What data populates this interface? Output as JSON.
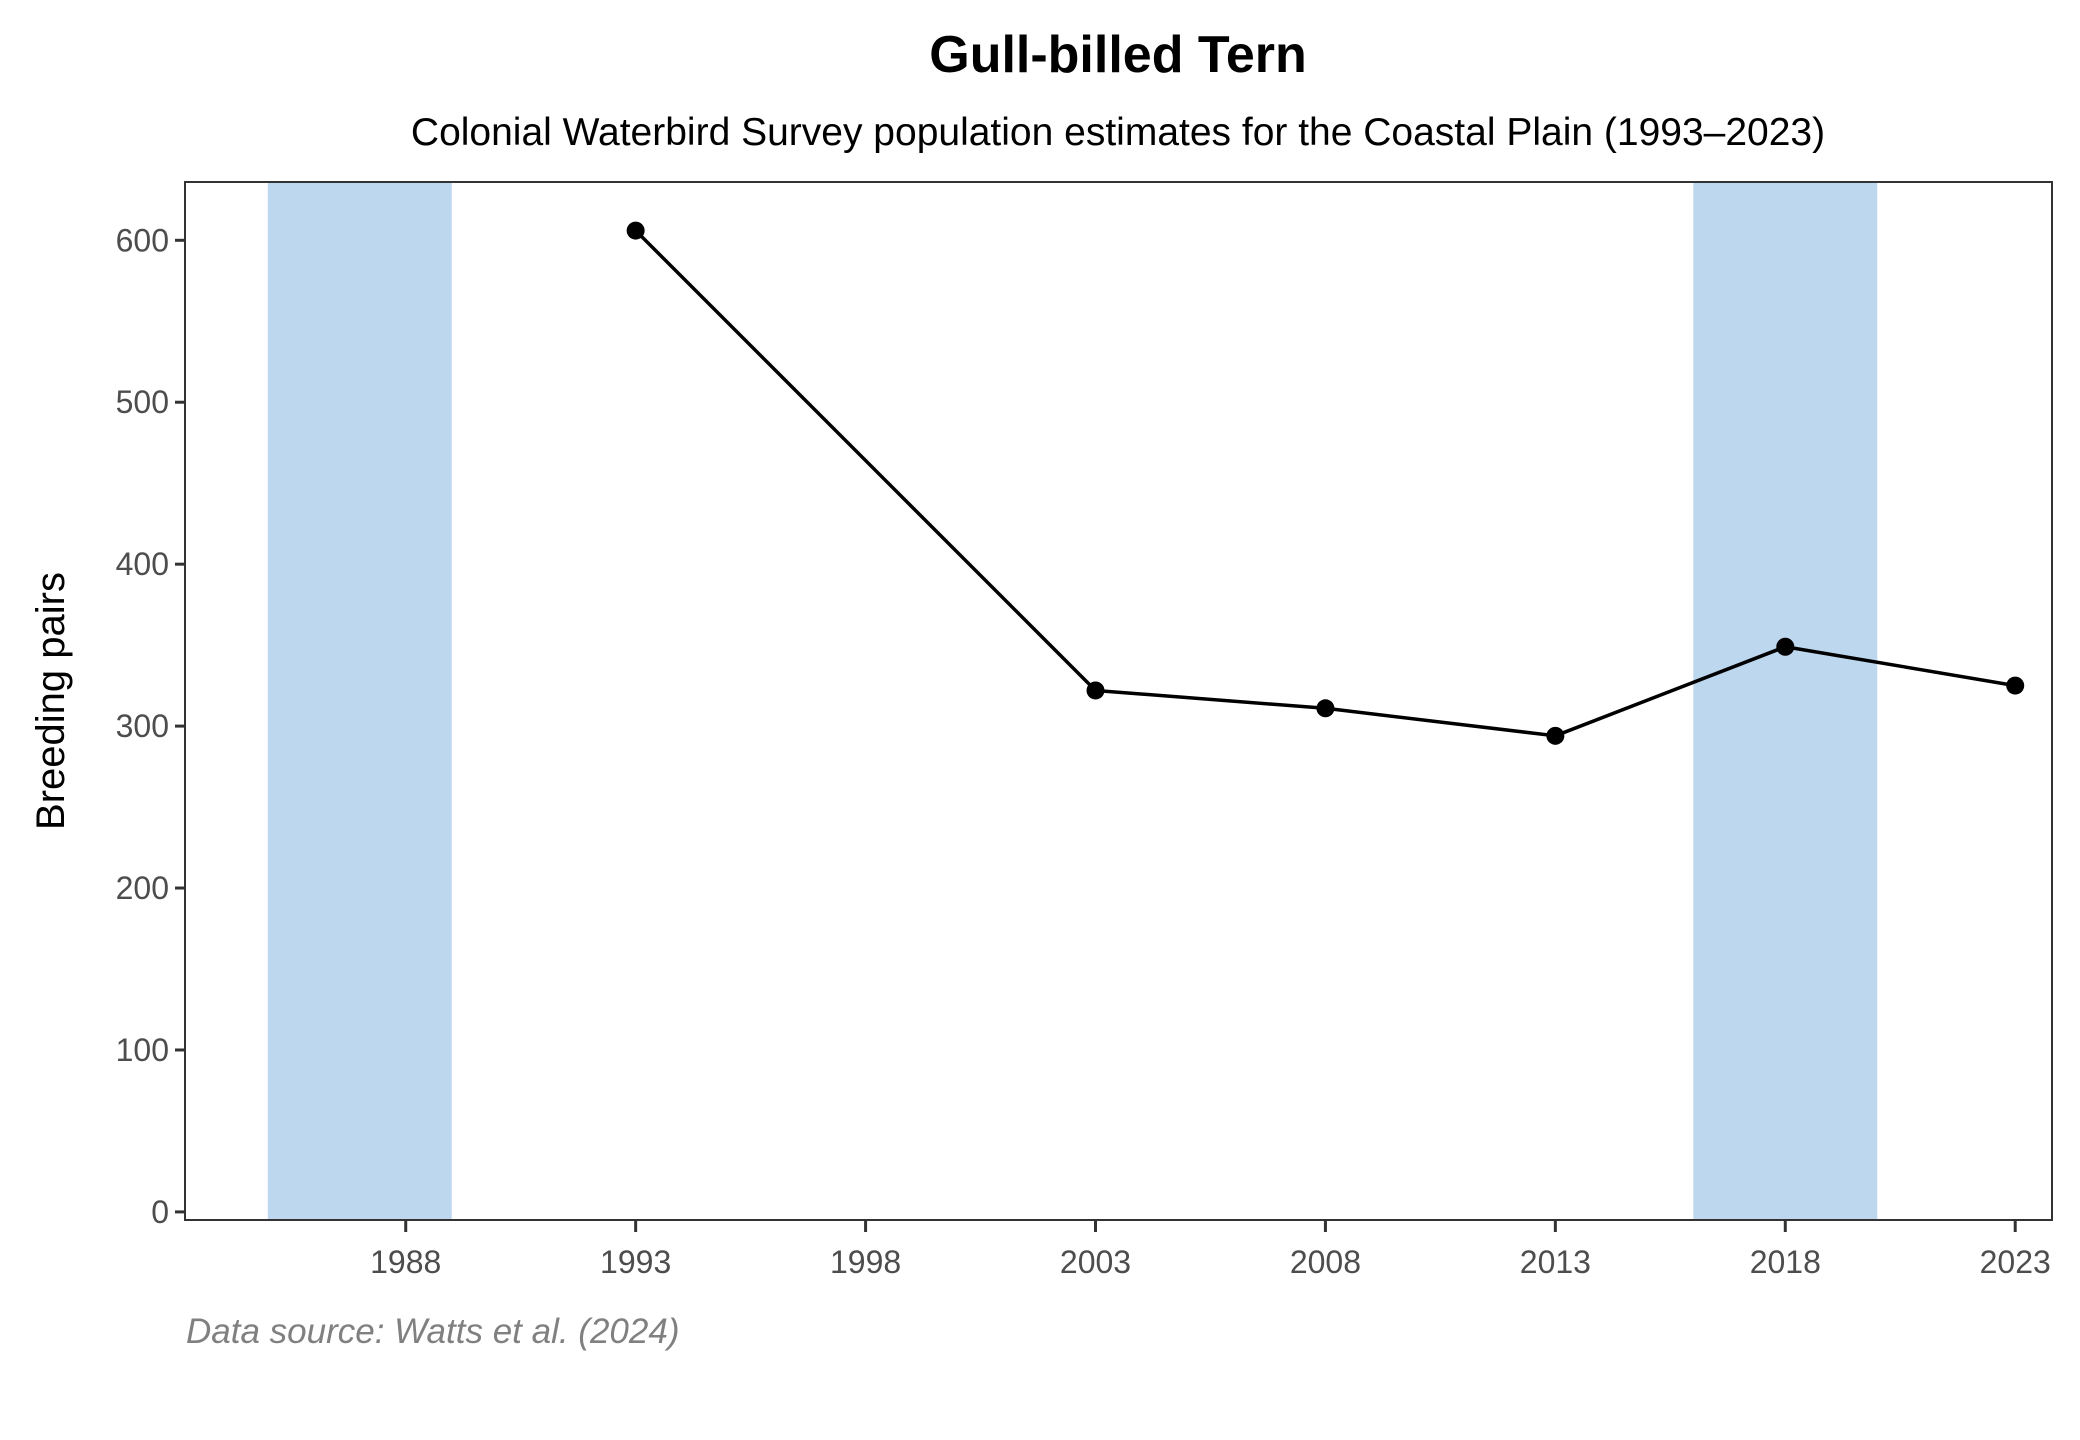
{
  "chart_data": {
    "type": "line",
    "title": "Gull-billed Tern",
    "subtitle": "Colonial Waterbird Survey population estimates for the Coastal Plain (1993–2023)",
    "xlabel": "",
    "ylabel": "Breeding pairs",
    "caption": "Data source: Watts et al. (2024)",
    "xlim": [
      1983.2,
      2023.8
    ],
    "ylim": [
      -5,
      636
    ],
    "x_ticks": [
      1988,
      1993,
      1998,
      2003,
      2008,
      2013,
      2018,
      2023
    ],
    "x_tick_labels": [
      "1988",
      "1993",
      "1998",
      "2003",
      "2008",
      "2013",
      "2018",
      "2023"
    ],
    "y_ticks": [
      0,
      100,
      200,
      300,
      400,
      500,
      600
    ],
    "y_tick_labels": [
      "0",
      "100",
      "200",
      "300",
      "400",
      "500",
      "600"
    ],
    "grid": false,
    "shaded_periods": [
      {
        "start": 1985,
        "end": 1989
      },
      {
        "start": 2016,
        "end": 2020
      }
    ],
    "series": [
      {
        "name": "Breeding pairs",
        "x": [
          1993,
          2003,
          2008,
          2013,
          2018,
          2023
        ],
        "values": [
          606,
          322,
          311,
          294,
          349,
          325
        ]
      }
    ],
    "colors": {
      "line": "#000000",
      "point": "#000000",
      "shade": "#bdd7ee",
      "axis": "#333333",
      "tick_label": "#4d4d4d",
      "caption": "#808080"
    }
  }
}
